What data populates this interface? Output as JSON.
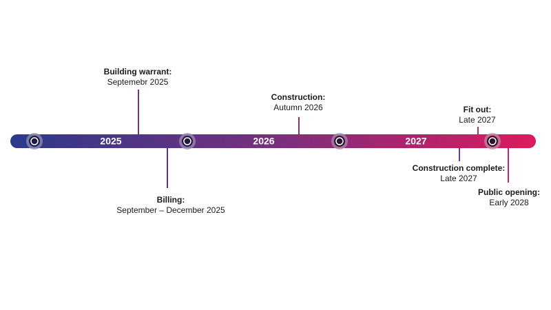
{
  "timeline": {
    "years": [
      "2025",
      "2026",
      "2027"
    ],
    "milestones": [
      {
        "label": "Building warrant:",
        "date": "Septemebr 2025"
      },
      {
        "label": "Billing:",
        "date": "September – December 2025"
      },
      {
        "label": "Construction:",
        "date": "Autumn 2026"
      },
      {
        "label": "Fit out:",
        "date": "Late 2027"
      },
      {
        "label": "Construction complete:",
        "date": "Late 2027"
      },
      {
        "label": "Public opening:",
        "date": "Early 2028"
      }
    ]
  }
}
